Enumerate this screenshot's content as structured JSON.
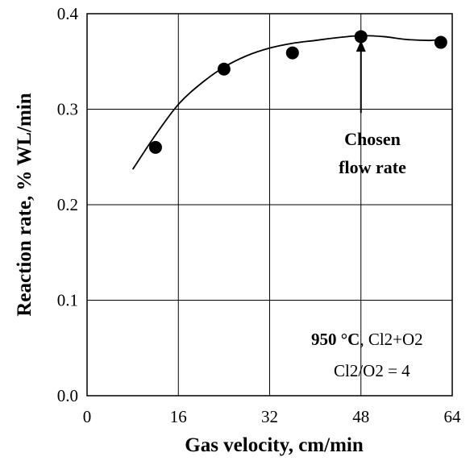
{
  "chart_data": {
    "type": "scatter",
    "xlabel": "Gas velocity, cm/min",
    "ylabel": "Reaction rate, % WL/min",
    "xlim": [
      0,
      64
    ],
    "ylim": [
      0,
      0.4
    ],
    "xticks": [
      "0",
      "16",
      "32",
      "48",
      "64"
    ],
    "yticks": [
      "0.0",
      "0.1",
      "0.2",
      "0.3",
      "0.4"
    ],
    "x_tick_values": [
      0,
      16,
      32,
      48,
      64
    ],
    "y_tick_values": [
      0,
      0.1,
      0.2,
      0.3,
      0.4
    ],
    "grid": true,
    "series": [
      {
        "points": [
          {
            "x": 12,
            "y": 0.26
          },
          {
            "x": 24,
            "y": 0.342
          },
          {
            "x": 36,
            "y": 0.359
          },
          {
            "x": 48,
            "y": 0.376
          },
          {
            "x": 62,
            "y": 0.37
          }
        ]
      }
    ],
    "fit_curve": [
      {
        "x": 8,
        "y": 0.237
      },
      {
        "x": 12,
        "y": 0.273
      },
      {
        "x": 16,
        "y": 0.305
      },
      {
        "x": 20,
        "y": 0.327
      },
      {
        "x": 24,
        "y": 0.344
      },
      {
        "x": 28,
        "y": 0.356
      },
      {
        "x": 32,
        "y": 0.364
      },
      {
        "x": 36,
        "y": 0.369
      },
      {
        "x": 40,
        "y": 0.372
      },
      {
        "x": 44,
        "y": 0.375
      },
      {
        "x": 48,
        "y": 0.377
      },
      {
        "x": 52,
        "y": 0.376
      },
      {
        "x": 56,
        "y": 0.373
      },
      {
        "x": 60,
        "y": 0.372
      },
      {
        "x": 62,
        "y": 0.373
      }
    ],
    "annotations": {
      "chosen_line1": "Chosen",
      "chosen_line2": "flow rate",
      "chosen_x": 48,
      "chosen_arrow_tip_y": 0.372,
      "chosen_arrow_tail_y": 0.296,
      "temperature": "950 °C",
      "gas_mix": ", Cl2+O2",
      "ratio": "Cl2/O2 = 4"
    }
  }
}
